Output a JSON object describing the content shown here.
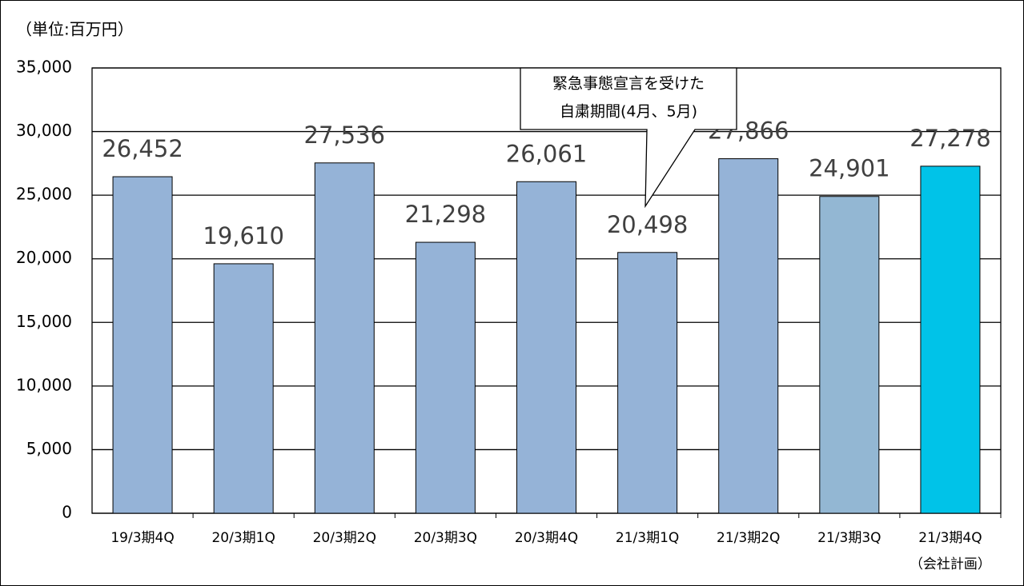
{
  "chart_data": {
    "type": "bar",
    "unit_label": "（単位:百万円）",
    "annotation": [
      "緊急事態宣言を受けた",
      "自粛期間(4月、5月)"
    ],
    "categories": [
      "19/3期4Q",
      "20/3期1Q",
      "20/3期2Q",
      "20/3期3Q",
      "20/3期4Q",
      "21/3期1Q",
      "21/3期2Q",
      "21/3期3Q",
      [
        "21/3期4Q",
        "（会社計画）"
      ]
    ],
    "values": [
      26452,
      19610,
      27536,
      21298,
      26061,
      20498,
      27866,
      24901,
      27278
    ],
    "value_labels": [
      "26,452",
      "19,610",
      "27,536",
      "21,298",
      "26,061",
      "20,498",
      "27,866",
      "24,901",
      "27,278"
    ],
    "colors": [
      "#95b3d7",
      "#95b3d7",
      "#95b3d7",
      "#95b3d7",
      "#95b3d7",
      "#95b3d7",
      "#95b3d7",
      "#93b7d3",
      "#00c3e8"
    ],
    "ylim": [
      0,
      35000
    ],
    "yticks": [
      0,
      {
        "value": 5000,
        "label": "5,000"
      },
      {
        "value": 10000,
        "label": "10,000"
      },
      {
        "value": 15000,
        "label": "15,000"
      },
      {
        "value": 20000,
        "label": "20,000"
      },
      {
        "value": 25000,
        "label": "25,000"
      },
      {
        "value": 30000,
        "label": "30,000"
      },
      {
        "value": 35000,
        "label": "35,000"
      }
    ],
    "grid": true
  }
}
